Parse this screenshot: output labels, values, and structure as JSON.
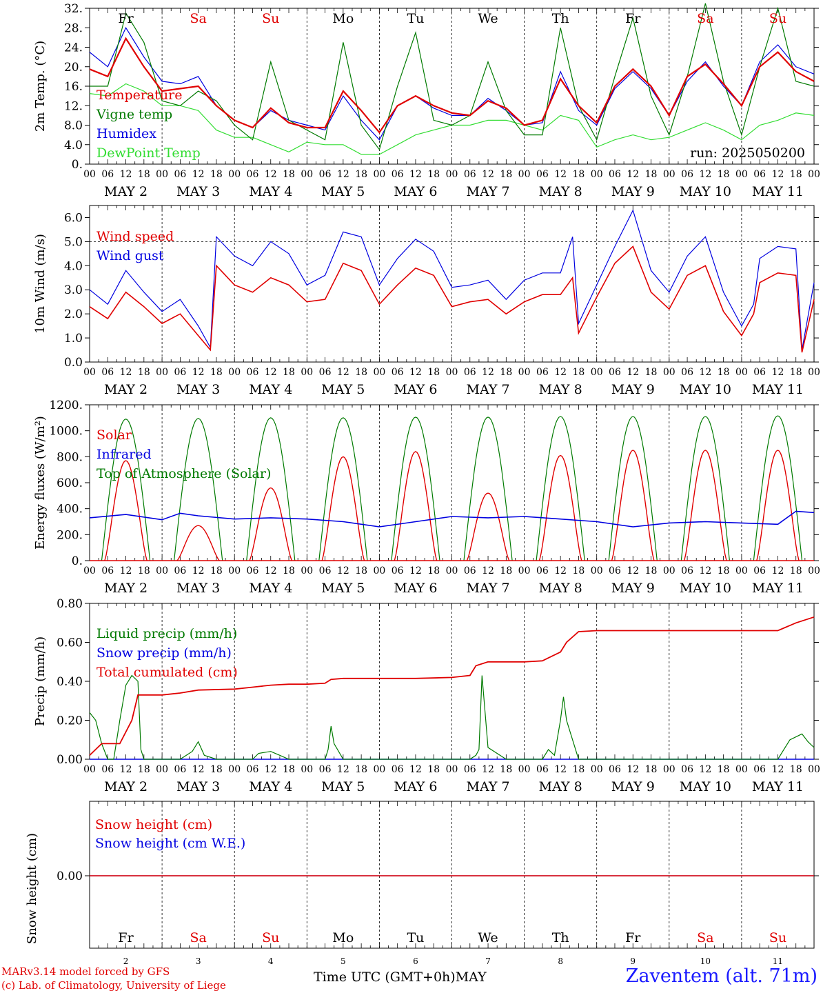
{
  "footer": {
    "model_line": "MARv3.14 model forced by GFS",
    "credit_line": "(c) Lab. of Climatology, University of Liege",
    "time_axis": "Time UTC (GMT+0h)",
    "month": "MAY",
    "station": "Zaventem (alt. 71m)"
  },
  "days": {
    "names": [
      "Fr",
      "Sa",
      "Su",
      "Mo",
      "Tu",
      "We",
      "Th",
      "Fr",
      "Sa",
      "Su"
    ],
    "weekend": [
      false,
      true,
      true,
      false,
      false,
      false,
      false,
      false,
      true,
      true
    ],
    "dates": [
      "MAY  2",
      "MAY  3",
      "MAY  4",
      "MAY  5",
      "MAY  6",
      "MAY  7",
      "MAY  8",
      "MAY  9",
      "MAY 10",
      "MAY 11"
    ],
    "dates_short": [
      "2",
      "3",
      "4",
      "5",
      "6",
      "7",
      "8",
      "9",
      "10",
      "11"
    ],
    "hour_ticks": [
      "00",
      "06",
      "12",
      "18"
    ],
    "final_tick": "00"
  },
  "colors": {
    "red": "#e00000",
    "green": "#007a00",
    "blue": "#0000e0",
    "light_green": "#33dd33",
    "weekend": "#e00000"
  },
  "chart_data": [
    {
      "type": "line",
      "ylabel": "2m Temp. (°C)",
      "ylim": [
        0,
        32
      ],
      "yticks": [
        "0.",
        "4.0",
        "8.0",
        "12.",
        "16.",
        "20.",
        "24.",
        "28.",
        "32."
      ],
      "annotation": "run: 2025050200",
      "grid_vertical": "dashed at day boundaries",
      "x_unit": "hours since 2025-05-02 00 UTC",
      "series": [
        {
          "name": "Temperature",
          "color": "red",
          "x": [
            0,
            6,
            12,
            18,
            24,
            30,
            36,
            42,
            48,
            54,
            60,
            66,
            72,
            78,
            84,
            90,
            96,
            102,
            108,
            114,
            120,
            126,
            132,
            138,
            144,
            150,
            156,
            162,
            168,
            174,
            180,
            186,
            192,
            198,
            204,
            210,
            216,
            222,
            228,
            234,
            240
          ],
          "y": [
            19.5,
            18,
            25.8,
            20,
            15,
            15.5,
            16,
            12,
            9,
            7.5,
            11.5,
            8.5,
            7.5,
            7.5,
            15,
            11,
            6.5,
            12,
            14,
            12,
            10.5,
            10,
            13,
            11.5,
            8,
            9,
            17.5,
            12,
            8.5,
            16,
            19.5,
            16,
            10,
            18,
            20.5,
            16.5,
            12,
            20,
            23,
            19,
            17
          ]
        },
        {
          "name": "Vigne temp",
          "color": "green",
          "x": [
            0,
            6,
            12,
            18,
            24,
            30,
            36,
            42,
            48,
            54,
            60,
            66,
            72,
            78,
            84,
            90,
            96,
            102,
            108,
            114,
            120,
            126,
            132,
            138,
            144,
            150,
            156,
            162,
            168,
            174,
            180,
            186,
            192,
            198,
            204,
            210,
            216,
            222,
            228,
            234,
            240
          ],
          "y": [
            16,
            16,
            31,
            25,
            13,
            12,
            15,
            13,
            8,
            5,
            21,
            9,
            7,
            5,
            25,
            8,
            3,
            16,
            27,
            9,
            8,
            10,
            21,
            11,
            6,
            6,
            28,
            12,
            5,
            18,
            30,
            14,
            6,
            18,
            33,
            17,
            6,
            20,
            32,
            17,
            16
          ]
        },
        {
          "name": "Humidex",
          "color": "blue",
          "x": [
            0,
            6,
            12,
            18,
            24,
            30,
            36,
            42,
            48,
            54,
            60,
            66,
            72,
            78,
            84,
            90,
            96,
            102,
            108,
            114,
            120,
            126,
            132,
            138,
            144,
            150,
            156,
            162,
            168,
            174,
            180,
            186,
            192,
            198,
            204,
            210,
            216,
            222,
            228,
            234,
            240
          ],
          "y": [
            23,
            20,
            28,
            22,
            17,
            16.5,
            18,
            12,
            9,
            7.5,
            11,
            9,
            8,
            7,
            14,
            9,
            5,
            12,
            14,
            11.5,
            10,
            10,
            13.5,
            11,
            8,
            8.5,
            19,
            11,
            8,
            15.5,
            19,
            15.5,
            10,
            17,
            21,
            16,
            12,
            21,
            24.5,
            20,
            18.5
          ]
        },
        {
          "name": "DewPoint Temp",
          "color": "light_green",
          "x": [
            0,
            6,
            12,
            18,
            24,
            30,
            36,
            42,
            48,
            54,
            60,
            66,
            72,
            78,
            84,
            90,
            96,
            102,
            108,
            114,
            120,
            126,
            132,
            138,
            144,
            150,
            156,
            162,
            168,
            174,
            180,
            186,
            192,
            198,
            204,
            210,
            216,
            222,
            228,
            234,
            240
          ],
          "y": [
            14.5,
            14,
            16.5,
            15,
            12,
            12,
            11,
            7,
            5.5,
            5.5,
            4,
            2.5,
            4.5,
            4,
            4,
            2,
            2,
            4,
            6,
            7,
            8,
            8,
            9,
            9,
            8,
            7,
            10,
            9,
            3.5,
            5,
            6,
            5,
            5.5,
            7,
            8.5,
            7,
            5,
            8,
            9,
            10.5,
            10
          ]
        }
      ]
    },
    {
      "type": "line",
      "ylabel": "10m Wind (m/s)",
      "ylim": [
        0,
        6.5
      ],
      "yticks": [
        "0.0",
        "1.0",
        "2.0",
        "3.0",
        "4.0",
        "5.0",
        "6.0"
      ],
      "reference_line": 5.0,
      "x_unit": "hours since 2025-05-02 00 UTC",
      "series": [
        {
          "name": "Wind speed",
          "color": "red",
          "x": [
            0,
            6,
            12,
            18,
            24,
            30,
            36,
            40,
            42,
            48,
            54,
            60,
            66,
            72,
            78,
            84,
            90,
            96,
            102,
            108,
            114,
            120,
            126,
            132,
            138,
            144,
            150,
            156,
            160,
            162,
            168,
            174,
            180,
            186,
            192,
            198,
            204,
            210,
            216,
            220,
            222,
            228,
            234,
            236,
            240
          ],
          "y": [
            2.3,
            1.8,
            2.9,
            2.3,
            1.6,
            2,
            1.1,
            0.5,
            4,
            3.2,
            2.9,
            3.5,
            3.2,
            2.5,
            2.6,
            4.1,
            3.8,
            2.4,
            3.2,
            3.9,
            3.6,
            2.3,
            2.5,
            2.6,
            2,
            2.5,
            2.8,
            2.8,
            3.5,
            1.2,
            2.7,
            4.1,
            4.8,
            2.9,
            2.2,
            3.6,
            4,
            2.1,
            1.1,
            2,
            3.3,
            3.7,
            3.6,
            0.4,
            2.6
          ]
        },
        {
          "name": "Wind gust",
          "color": "blue",
          "x": [
            0,
            6,
            12,
            18,
            24,
            30,
            36,
            40,
            42,
            48,
            54,
            60,
            66,
            72,
            78,
            84,
            90,
            96,
            102,
            108,
            114,
            120,
            126,
            132,
            138,
            144,
            150,
            156,
            160,
            162,
            168,
            174,
            180,
            186,
            192,
            198,
            204,
            210,
            216,
            220,
            222,
            228,
            234,
            236,
            240
          ],
          "y": [
            3,
            2.4,
            3.8,
            2.9,
            2.1,
            2.6,
            1.5,
            0.6,
            5.2,
            4.4,
            4,
            5,
            4.5,
            3.2,
            3.6,
            5.4,
            5.2,
            3.2,
            4.3,
            5.1,
            4.6,
            3.1,
            3.2,
            3.4,
            2.6,
            3.4,
            3.7,
            3.7,
            5.2,
            1.6,
            3.2,
            4.8,
            6.3,
            3.8,
            2.9,
            4.4,
            5.2,
            2.9,
            1.5,
            2.4,
            4.3,
            4.8,
            4.7,
            0.5,
            3.3
          ]
        }
      ]
    },
    {
      "type": "line",
      "ylabel": "Energy fluxes (W/m²)",
      "ylim": [
        0,
        1200
      ],
      "yticks": [
        "0.",
        "200.",
        "400.",
        "600.",
        "800.",
        "1000.",
        "1200."
      ],
      "x_unit": "hours since 2025-05-02 00 UTC",
      "series": [
        {
          "name": "Solar",
          "color": "red",
          "peak_per_day": [
            770,
            270,
            560,
            800,
            840,
            520,
            810,
            850,
            850,
            850
          ]
        },
        {
          "name": "Infrared",
          "color": "blue",
          "x": [
            0,
            12,
            24,
            30,
            36,
            48,
            60,
            72,
            84,
            96,
            108,
            120,
            132,
            144,
            156,
            168,
            180,
            192,
            204,
            216,
            228,
            234,
            240
          ],
          "y": [
            330,
            355,
            315,
            365,
            345,
            320,
            330,
            320,
            300,
            260,
            300,
            340,
            330,
            340,
            320,
            300,
            260,
            290,
            300,
            290,
            280,
            380,
            370
          ]
        },
        {
          "name": "Top of Atmosphere (Solar)",
          "color": "green",
          "peak_per_day": [
            1090,
            1095,
            1100,
            1100,
            1105,
            1105,
            1110,
            1110,
            1110,
            1115
          ]
        }
      ]
    },
    {
      "type": "line",
      "ylabel": "Precip (mm/h)",
      "ylim": [
        0,
        0.8
      ],
      "yticks": [
        "0.00",
        "0.20",
        "0.40",
        "0.60",
        "0.80"
      ],
      "x_unit": "hours since 2025-05-02 00 UTC",
      "series": [
        {
          "name": "Liquid precip (mm/h)",
          "color": "green",
          "x": [
            0,
            2,
            4,
            6,
            8,
            10,
            12,
            14,
            16,
            17,
            18,
            24,
            30,
            34,
            36,
            38,
            42,
            48,
            54,
            56,
            60,
            63,
            66,
            72,
            78,
            79,
            80,
            81,
            84,
            90,
            96,
            102,
            108,
            114,
            120,
            126,
            128,
            129,
            130,
            132,
            138,
            150,
            152,
            154,
            156,
            157,
            158,
            162,
            168,
            174,
            180,
            186,
            192,
            198,
            204,
            210,
            216,
            220,
            224,
            228,
            232,
            236,
            238,
            240
          ],
          "y": [
            0.24,
            0.2,
            0.08,
            0,
            0,
            0.2,
            0.38,
            0.43,
            0.4,
            0.05,
            0,
            0,
            0,
            0.04,
            0.09,
            0.02,
            0,
            0,
            0,
            0.03,
            0.04,
            0.02,
            0,
            0,
            0,
            0.05,
            0.17,
            0.08,
            0,
            0,
            0,
            0,
            0,
            0,
            0,
            0,
            0.02,
            0.05,
            0.43,
            0.06,
            0,
            0,
            0.05,
            0.02,
            0.2,
            0.32,
            0.2,
            0,
            0,
            0,
            0,
            0,
            0,
            0,
            0,
            0,
            0,
            0,
            0,
            0,
            0.1,
            0.13,
            0.09,
            0.06
          ]
        },
        {
          "name": "Snow precip (mm/h)",
          "color": "blue",
          "x": [
            0,
            240
          ],
          "y": [
            0,
            0
          ]
        },
        {
          "name": "Total cumulated (cm)",
          "color": "red",
          "x": [
            0,
            4,
            10,
            14,
            16,
            24,
            30,
            36,
            48,
            54,
            60,
            66,
            72,
            78,
            80,
            84,
            96,
            108,
            120,
            126,
            128,
            132,
            144,
            150,
            152,
            156,
            158,
            162,
            168,
            180,
            192,
            204,
            216,
            228,
            234,
            240
          ],
          "y": [
            0.02,
            0.08,
            0.08,
            0.2,
            0.33,
            0.33,
            0.34,
            0.355,
            0.36,
            0.37,
            0.38,
            0.385,
            0.385,
            0.39,
            0.41,
            0.415,
            0.415,
            0.415,
            0.42,
            0.43,
            0.48,
            0.5,
            0.5,
            0.505,
            0.52,
            0.55,
            0.6,
            0.655,
            0.66,
            0.66,
            0.66,
            0.66,
            0.66,
            0.66,
            0.7,
            0.73
          ]
        }
      ]
    },
    {
      "type": "line",
      "ylabel": "Snow height (cm)",
      "yticks": [
        "0.00"
      ],
      "x_unit": "hours since 2025-05-02 00 UTC",
      "series": [
        {
          "name": "Snow height (cm)",
          "color": "red",
          "x": [
            0,
            240
          ],
          "y": [
            0,
            0
          ]
        },
        {
          "name": "Snow height (cm W.E.)",
          "color": "blue",
          "x": [
            0,
            240
          ],
          "y": [
            0,
            0
          ]
        }
      ]
    }
  ]
}
